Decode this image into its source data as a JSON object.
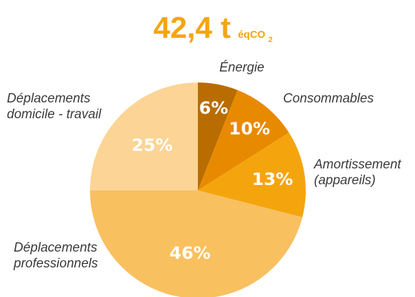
{
  "chart_data": {
    "type": "pie",
    "title": {
      "value": "42,4 t",
      "unit_prefix": "éqCO",
      "unit_subscript": "2"
    },
    "start_angle_deg": 0,
    "direction": "clockwise",
    "slices": [
      {
        "label": [
          "Énergie"
        ],
        "value": 6,
        "pct_label": "6%",
        "color": "#b96d00"
      },
      {
        "label": [
          "Consommables"
        ],
        "value": 10,
        "pct_label": "10%",
        "color": "#e88a00"
      },
      {
        "label": [
          "Amortissement",
          "(appareils)"
        ],
        "value": 13,
        "pct_label": "13%",
        "color": "#f4a50e"
      },
      {
        "label": [
          "Déplacements",
          "professionnels"
        ],
        "value": 46,
        "pct_label": "46%",
        "color": "#f9c060"
      },
      {
        "label": [
          "Déplacements",
          "domicile - travail"
        ],
        "value": 25,
        "pct_label": "25%",
        "color": "#fcd495"
      }
    ],
    "title_color": "#f4a50e"
  }
}
